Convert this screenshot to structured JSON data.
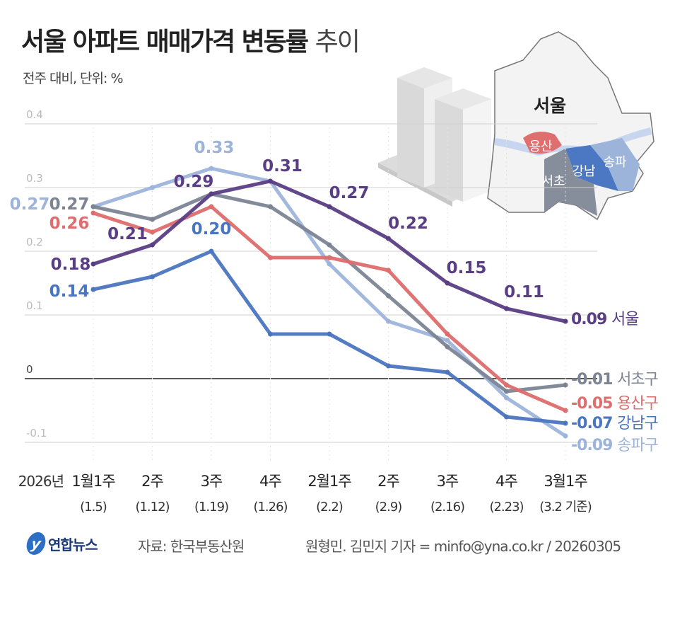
{
  "title": {
    "bold": "서울 아파트 매매가격 변동률",
    "light": "추이"
  },
  "subtitle": "전주 대비, 단위: %",
  "map": {
    "city_label": "서울",
    "districts": [
      "용산",
      "강남",
      "송파",
      "서초"
    ]
  },
  "footer": {
    "logo": "연합뉴스",
    "source": "자료: 한국부동산원",
    "credit": "원형민. 김민지 기자 = minfo@yna.co.kr / 20260305"
  },
  "chart_data": {
    "type": "line",
    "title": "서울 아파트 매매가격 변동률 추이",
    "ylabel": "전주 대비, 단위: %",
    "year_label": "2026년",
    "categories": [
      "1월1주",
      "2주",
      "3주",
      "4주",
      "2월1주",
      "2주",
      "3주",
      "4주",
      "3월1주"
    ],
    "category_dates": [
      "(1.5)",
      "(1.12)",
      "(1.19)",
      "(1.26)",
      "(2.2)",
      "(2.9)",
      "(2.16)",
      "(2.23)",
      "(3.2 기준)"
    ],
    "yticks": [
      "0.4",
      "0.3",
      "0.2",
      "0.1",
      "0",
      "-0.1"
    ],
    "ylim": [
      -0.12,
      0.42
    ],
    "grid": true,
    "series": [
      {
        "name": "송파구",
        "color": "#9db4da",
        "values": [
          0.27,
          0.3,
          0.33,
          0.31,
          0.18,
          0.09,
          0.06,
          -0.03,
          -0.09
        ],
        "labeled_points": [
          0,
          2
        ]
      },
      {
        "name": "서초구",
        "color": "#7c8493",
        "values": [
          0.27,
          0.25,
          0.29,
          0.27,
          0.21,
          0.13,
          0.05,
          -0.02,
          -0.01
        ],
        "labeled_points": [
          0
        ]
      },
      {
        "name": "용산구",
        "color": "#de6d6d",
        "values": [
          0.26,
          0.23,
          0.27,
          0.19,
          0.19,
          0.17,
          0.07,
          -0.01,
          -0.05
        ],
        "labeled_points": [
          0
        ]
      },
      {
        "name": "강남구",
        "color": "#4a75c0",
        "values": [
          0.14,
          0.16,
          0.2,
          0.07,
          0.07,
          0.02,
          0.01,
          -0.06,
          -0.07
        ],
        "labeled_points": [
          0,
          2
        ]
      },
      {
        "name": "서울",
        "color": "#5a3e85",
        "values": [
          0.18,
          0.21,
          0.29,
          0.31,
          0.27,
          0.22,
          0.15,
          0.11,
          0.09
        ],
        "labeled_points": [
          0,
          1,
          2,
          3,
          4,
          5,
          6,
          7
        ]
      }
    ]
  }
}
